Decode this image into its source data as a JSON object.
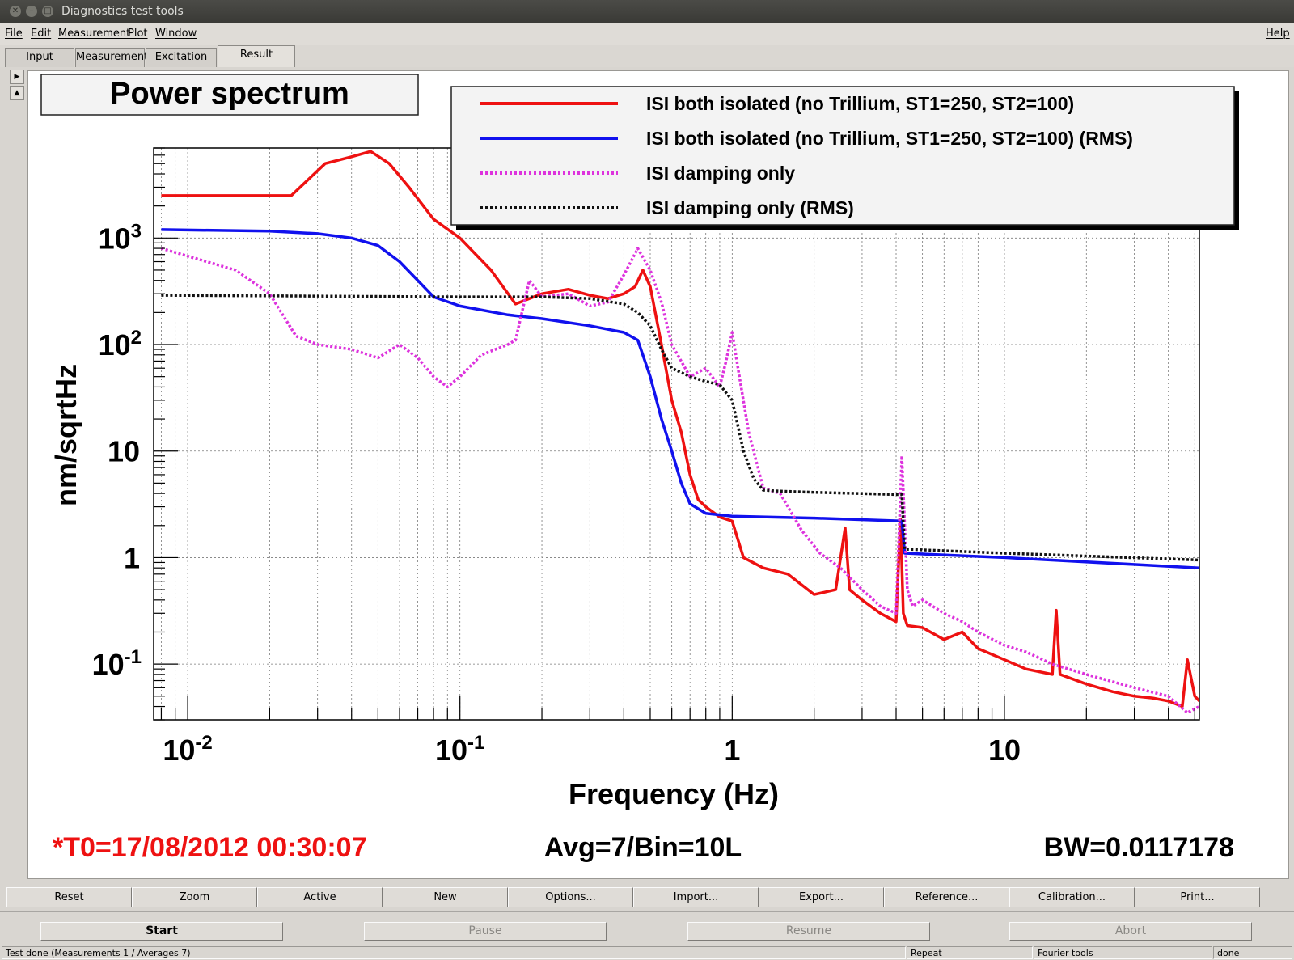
{
  "window": {
    "title": "Diagnostics test tools"
  },
  "menu": {
    "items": [
      "File",
      "Edit",
      "Measurement",
      "Plot",
      "Window"
    ],
    "help": "Help"
  },
  "tabs": [
    "Input",
    "Measurement",
    "Excitation",
    "Result"
  ],
  "active_tab": "Result",
  "plot": {
    "title": "Power spectrum",
    "ylabel": "nm/sqrtHz",
    "xlabel": "Frequency (Hz)",
    "info_t0": "*T0=17/08/2012 00:30:07",
    "info_avg": "Avg=7/Bin=10L",
    "info_bw": "BW=0.0117178",
    "xticks": [
      {
        "base": "10",
        "exp": "-2"
      },
      {
        "base": "10",
        "exp": "-1"
      },
      {
        "base": "1",
        "exp": ""
      },
      {
        "base": "10",
        "exp": ""
      }
    ],
    "yticks": [
      {
        "base": "10",
        "exp": "3"
      },
      {
        "base": "10",
        "exp": "2"
      },
      {
        "base": "10",
        "exp": ""
      },
      {
        "base": "1",
        "exp": ""
      },
      {
        "base": "10",
        "exp": "-1"
      }
    ]
  },
  "chart_data": {
    "type": "line",
    "title": "Power spectrum",
    "xlabel": "Frequency (Hz)",
    "ylabel": "nm/sqrtHz",
    "xscale": "log",
    "yscale": "log",
    "xlim": [
      0.0075,
      52
    ],
    "ylim": [
      0.03,
      7000
    ],
    "grid": true,
    "legend_position": "top-right",
    "series": [
      {
        "name": "ISI both isolated (no Trillium, ST1=250, ST2=100)",
        "color": "#ee1111",
        "style": "solid",
        "x": [
          0.008,
          0.024,
          0.032,
          0.04,
          0.047,
          0.055,
          0.065,
          0.08,
          0.1,
          0.13,
          0.16,
          0.2,
          0.25,
          0.3,
          0.35,
          0.4,
          0.44,
          0.47,
          0.5,
          0.55,
          0.6,
          0.65,
          0.7,
          0.75,
          0.8,
          0.9,
          1.0,
          1.1,
          1.3,
          1.6,
          2.0,
          2.4,
          2.6,
          2.7,
          3.0,
          3.5,
          4.0,
          4.15,
          4.25,
          4.4,
          5.0,
          6.0,
          7.0,
          8.0,
          10,
          12,
          15,
          15.5,
          16,
          20,
          25,
          30,
          35,
          40,
          45,
          47,
          50,
          52
        ],
        "y": [
          2500,
          2500,
          5000,
          5800,
          6500,
          5000,
          3000,
          1500,
          1000,
          500,
          240,
          300,
          330,
          290,
          270,
          300,
          350,
          500,
          350,
          100,
          30,
          15,
          6,
          3.5,
          3,
          2.4,
          2.2,
          1.0,
          0.8,
          0.7,
          0.45,
          0.5,
          1.9,
          0.5,
          0.4,
          0.3,
          0.25,
          2.3,
          0.3,
          0.23,
          0.22,
          0.17,
          0.2,
          0.14,
          0.11,
          0.09,
          0.08,
          0.32,
          0.08,
          0.065,
          0.055,
          0.05,
          0.048,
          0.045,
          0.04,
          0.11,
          0.05,
          0.045
        ]
      },
      {
        "name": "ISI both isolated (no Trillium, ST1=250, ST2=100) (RMS)",
        "color": "#1111ee",
        "style": "solid",
        "x": [
          0.008,
          0.02,
          0.03,
          0.04,
          0.05,
          0.06,
          0.07,
          0.08,
          0.1,
          0.15,
          0.2,
          0.3,
          0.4,
          0.45,
          0.5,
          0.55,
          0.6,
          0.65,
          0.7,
          0.8,
          1.0,
          2.0,
          4.2,
          4.3,
          10,
          52
        ],
        "y": [
          1200,
          1160,
          1100,
          1000,
          850,
          600,
          400,
          280,
          230,
          190,
          175,
          150,
          130,
          110,
          50,
          20,
          10,
          5,
          3.2,
          2.6,
          2.45,
          2.35,
          2.2,
          1.1,
          1.0,
          0.8
        ]
      },
      {
        "name": "ISI damping only",
        "color": "#dd33dd",
        "style": "dotted",
        "x": [
          0.008,
          0.015,
          0.02,
          0.025,
          0.03,
          0.04,
          0.05,
          0.06,
          0.07,
          0.08,
          0.09,
          0.1,
          0.12,
          0.15,
          0.16,
          0.18,
          0.2,
          0.25,
          0.3,
          0.35,
          0.4,
          0.45,
          0.5,
          0.55,
          0.6,
          0.7,
          0.8,
          0.9,
          0.95,
          1.0,
          1.05,
          1.15,
          1.3,
          1.5,
          1.8,
          2.1,
          2.5,
          3.0,
          3.5,
          4.0,
          4.2,
          4.4,
          4.6,
          5.0,
          6.0,
          7.0,
          8.0,
          10,
          12,
          15,
          20,
          30,
          40,
          47,
          52
        ],
        "y": [
          800,
          500,
          300,
          120,
          100,
          90,
          75,
          100,
          75,
          50,
          40,
          50,
          80,
          100,
          110,
          400,
          280,
          300,
          230,
          250,
          450,
          800,
          500,
          250,
          100,
          50,
          60,
          40,
          70,
          130,
          60,
          15,
          4.5,
          4.0,
          1.8,
          1.1,
          0.8,
          0.5,
          0.35,
          0.3,
          9.0,
          0.5,
          0.35,
          0.4,
          0.3,
          0.25,
          0.2,
          0.15,
          0.13,
          0.1,
          0.08,
          0.06,
          0.05,
          0.035,
          0.04
        ]
      },
      {
        "name": "ISI damping only (RMS)",
        "color": "#111111",
        "style": "dotted",
        "x": [
          0.008,
          0.1,
          0.2,
          0.3,
          0.4,
          0.45,
          0.5,
          0.55,
          0.6,
          0.7,
          0.8,
          0.9,
          1.0,
          1.1,
          1.2,
          1.3,
          1.5,
          2.0,
          4.2,
          4.3,
          10,
          52
        ],
        "y": [
          290,
          280,
          280,
          270,
          240,
          200,
          150,
          90,
          60,
          50,
          45,
          42,
          30,
          10,
          5.5,
          4.3,
          4.2,
          4.1,
          3.9,
          1.2,
          1.1,
          0.95
        ]
      }
    ]
  },
  "buttons": [
    "Reset",
    "Zoom",
    "Active",
    "New",
    "Options...",
    "Import...",
    "Export...",
    "Reference...",
    "Calibration...",
    "Print..."
  ],
  "controls": {
    "start": "Start",
    "pause": "Pause",
    "resume": "Resume",
    "abort": "Abort"
  },
  "status": {
    "message": "Test done (Measurements 1 / Averages 7)",
    "repeat": "Repeat",
    "tools": "Fourier tools",
    "state": "done"
  }
}
